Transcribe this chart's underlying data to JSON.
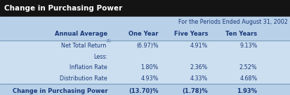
{
  "title": "Change in Purchasing Power",
  "header_row1_text": "For the Periods Ended August 31, 2002",
  "header_row2": [
    "Annual Average",
    "One Year",
    "Five Years",
    "Ten Years"
  ],
  "rows": [
    [
      "Net Total Return",
      "(6.97)%",
      "4.91%",
      "9.13%"
    ],
    [
      "Less:",
      "",
      "",
      ""
    ],
    [
      "Inflation Rate",
      "1.80%",
      "2.36%",
      "2.52%"
    ],
    [
      "Distribution Rate",
      "4.93%",
      "4.33%",
      "4.68%"
    ]
  ],
  "footer_row": [
    "Change in Purchasing Power",
    "(13.70)%",
    "(1.78)%",
    "1.93%"
  ],
  "title_bg": "#141414",
  "title_fg": "#ffffff",
  "header_bg": "#b8d0e8",
  "body_bg": "#ccdff0",
  "footer_bg": "#b8d0e8",
  "text_color": "#1a3a7a",
  "separator_color": "#7799bb",
  "figsize": [
    4.14,
    1.36
  ],
  "dpi": 100
}
